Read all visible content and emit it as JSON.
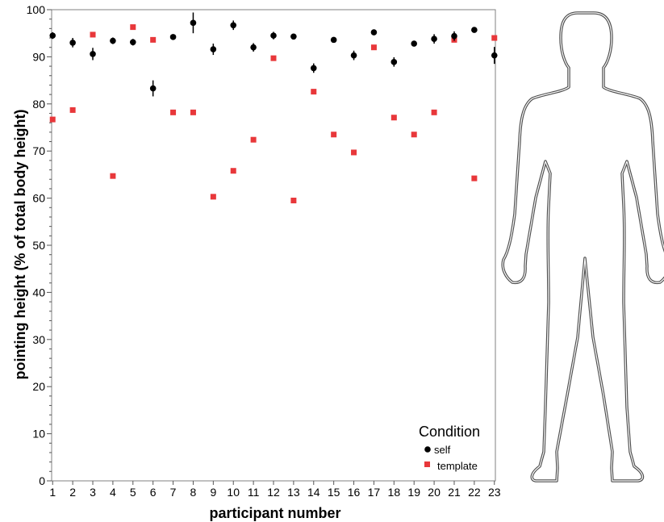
{
  "chart_data": {
    "type": "scatter",
    "xlabel": "participant number",
    "ylabel": "pointing height (% of total body height)",
    "x": [
      1,
      2,
      3,
      4,
      5,
      6,
      7,
      8,
      9,
      10,
      11,
      12,
      13,
      14,
      15,
      16,
      17,
      18,
      19,
      20,
      21,
      22,
      23
    ],
    "xlim": [
      0.95,
      23.05
    ],
    "ylim": [
      0,
      100
    ],
    "yticks": [
      0,
      10,
      20,
      30,
      40,
      50,
      60,
      70,
      80,
      90,
      100
    ],
    "grid": false,
    "legend": {
      "title": "Condition",
      "position": "bottom-right"
    },
    "series": [
      {
        "name": "self",
        "marker": "circle",
        "color": "#000000",
        "values": [
          94.5,
          93.0,
          90.6,
          93.4,
          93.1,
          83.3,
          94.2,
          97.2,
          91.6,
          96.7,
          92.0,
          94.5,
          94.3,
          87.6,
          93.6,
          90.3,
          95.2,
          88.9,
          92.8,
          93.8,
          94.4,
          95.7,
          90.3
        ],
        "error": [
          0.7,
          1.0,
          1.3,
          0.7,
          0.7,
          1.7,
          0.4,
          2.2,
          1.2,
          1.0,
          0.9,
          0.8,
          0.4,
          1.0,
          0.4,
          1.0,
          0.4,
          1.0,
          0.4,
          1.0,
          1.0,
          0.4,
          1.8
        ]
      },
      {
        "name": "template",
        "marker": "square",
        "color": "#e8373a",
        "values": [
          76.7,
          78.7,
          94.7,
          64.7,
          96.3,
          93.6,
          78.2,
          78.2,
          60.3,
          65.8,
          72.4,
          89.7,
          59.5,
          82.6,
          73.5,
          69.7,
          92.0,
          77.1,
          73.5,
          78.2,
          93.6,
          64.2,
          94.0
        ]
      }
    ]
  }
}
